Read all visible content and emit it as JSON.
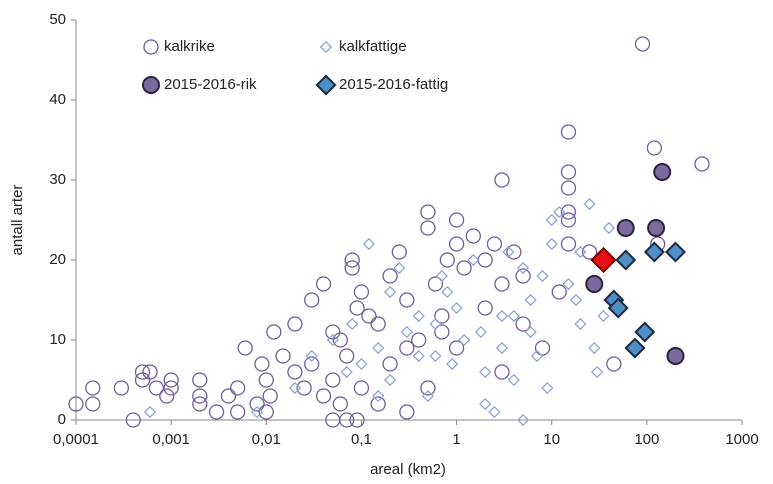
{
  "chart_data": {
    "type": "scatter",
    "xlabel": "areal (km2)",
    "ylabel": "antall arter",
    "xscale": "log",
    "xlim": [
      0.0001,
      1000
    ],
    "ylim": [
      0,
      50
    ],
    "xticks": [
      {
        "value": 0.0001,
        "label": "0,0001"
      },
      {
        "value": 0.001,
        "label": "0,001"
      },
      {
        "value": 0.01,
        "label": "0,01"
      },
      {
        "value": 0.1,
        "label": "0,1"
      },
      1,
      10,
      100,
      1000
    ],
    "yticks": [
      0,
      10,
      20,
      30,
      40,
      50
    ],
    "grid": false,
    "legend": "top-left",
    "series": [
      {
        "name": "kalkrike",
        "marker": "circle",
        "size": 7,
        "color": "#6e5f94",
        "fill": "none",
        "x": [
          90,
          380,
          120,
          3,
          15,
          15,
          15,
          15,
          0.5,
          1,
          15,
          15,
          25,
          130,
          45,
          0.0001,
          0.00015,
          0.00015,
          0.0004,
          0.0003,
          0.0005,
          0.0006,
          0.0005,
          0.0007,
          0.0009,
          0.001,
          0.001,
          0.002,
          0.002,
          0.002,
          0.003,
          0.004,
          0.005,
          0.006,
          0.005,
          0.008,
          0.01,
          0.01,
          0.012,
          0.015,
          0.02,
          0.03,
          0.04,
          0.05,
          0.06,
          0.07,
          0.08,
          0.08,
          0.1,
          0.12,
          0.15,
          0.2,
          0.25,
          0.3,
          0.4,
          0.5,
          0.6,
          0.7,
          0.8,
          1,
          1.2,
          1.5,
          2,
          2.5,
          3,
          4,
          5,
          0.02,
          0.03,
          0.05,
          0.07,
          0.1,
          0.15,
          0.2,
          0.3,
          0.5,
          0.7,
          1,
          2,
          3,
          5,
          8,
          12,
          0.009,
          0.011,
          0.025,
          0.04,
          0.06,
          0.09,
          0.3,
          0.05,
          0.09
        ],
        "values": [
          47,
          32,
          34,
          30,
          36,
          31,
          29,
          26,
          26,
          25,
          25,
          22,
          21,
          22,
          7,
          2,
          4,
          2,
          0,
          4,
          5,
          6,
          6,
          4,
          3,
          5,
          4,
          5,
          3,
          2,
          1,
          3,
          1,
          9,
          4,
          2,
          5,
          1,
          11,
          8,
          12,
          15,
          17,
          11,
          2,
          0,
          19,
          20,
          16,
          13,
          12,
          18,
          21,
          15,
          10,
          24,
          17,
          13,
          20,
          22,
          19,
          23,
          20,
          22,
          17,
          21,
          12,
          6,
          7,
          5,
          8,
          4,
          2,
          7,
          9,
          4,
          11,
          9,
          14,
          6,
          18,
          9,
          16,
          7,
          3,
          4,
          3,
          10,
          14,
          1,
          0,
          0
        ]
      },
      {
        "name": "kalkfattige",
        "marker": "diamond",
        "size": 4,
        "color": "#8aa6e0",
        "fill": "none",
        "x": [
          0.0006,
          0.008,
          0.02,
          0.03,
          0.05,
          0.07,
          0.1,
          0.12,
          0.15,
          0.2,
          0.3,
          0.4,
          0.5,
          0.6,
          0.8,
          1,
          1.2,
          1.5,
          2,
          2.5,
          3,
          4,
          5,
          5,
          6,
          8,
          10,
          12,
          15,
          18,
          20,
          25,
          28,
          30,
          35,
          40,
          20,
          7,
          3.5,
          0.25,
          0.6,
          0.9,
          0.15,
          2,
          4,
          6,
          9,
          1.8,
          0.4,
          0.08,
          0.2,
          0.7,
          10,
          3
        ],
        "values": [
          1,
          1,
          4,
          8,
          10,
          6,
          7,
          22,
          9,
          5,
          11,
          13,
          3,
          8,
          16,
          14,
          10,
          20,
          6,
          1,
          9,
          13,
          0,
          19,
          11,
          18,
          25,
          26,
          17,
          15,
          21,
          27,
          9,
          6,
          13,
          24,
          12,
          8,
          21,
          19,
          12,
          7,
          3,
          2,
          5,
          15,
          4,
          11,
          8,
          12,
          16,
          18,
          22,
          13
        ]
      },
      {
        "name": "2015-2016-rik",
        "marker": "circle",
        "size": 8,
        "color": "#2a2340",
        "fill": "#7b6a9c",
        "x": [
          28,
          60,
          125,
          145,
          200
        ],
        "values": [
          17,
          24,
          24,
          31,
          8
        ]
      },
      {
        "name": "2015-2016-fattig",
        "marker": "diamond",
        "size": 7,
        "color": "#1c2a40",
        "fill": "#4f8fc8",
        "x": [
          45,
          50,
          60,
          120,
          200,
          95,
          75
        ],
        "values": [
          15,
          14,
          20,
          21,
          21,
          11,
          9
        ]
      }
    ],
    "highlight": {
      "marker": "diamond",
      "size": 9,
      "color": "#7a0000",
      "fill": "#e81010",
      "x": [
        35
      ],
      "values": [
        20
      ]
    }
  }
}
